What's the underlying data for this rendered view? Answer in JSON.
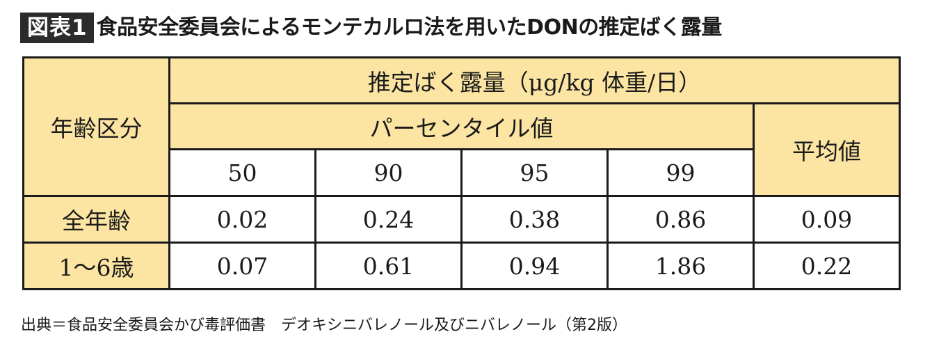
{
  "title": {
    "label": "図表1",
    "text": "食品安全委員会によるモンテカルロ法を用いたDONの推定ばく露量"
  },
  "table": {
    "age_group_header": "年齢区分",
    "exposure_header": "推定ばく露量（μg/kg 体重/日）",
    "percentile_header": "パーセンタイル値",
    "mean_header": "平均値",
    "percentiles": [
      "50",
      "90",
      "95",
      "99"
    ],
    "rows": [
      {
        "label": "全年齢",
        "values": [
          "0.02",
          "0.24",
          "0.38",
          "0.86"
        ],
        "mean": "0.09"
      },
      {
        "label": "1～6歳",
        "values": [
          "0.07",
          "0.61",
          "0.94",
          "1.86"
        ],
        "mean": "0.22"
      }
    ]
  },
  "source": "出典＝食品安全委員会かび毒評価書　デオキシニバレノール及びニバレノール（第2版）",
  "colors": {
    "header_fill": "#fce5a3",
    "label_fill": "#2b2b2b",
    "border": "#1a1a1a"
  }
}
